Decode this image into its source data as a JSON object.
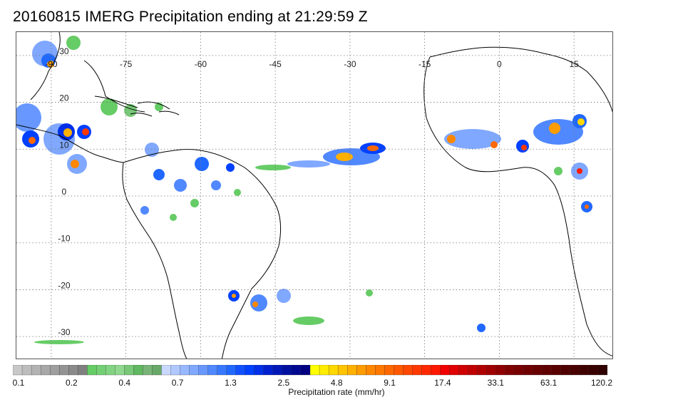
{
  "map": {
    "title": "20160815 IMERG Precipitation ending at 21:29:59 Z",
    "longitude_labels": [
      "-90",
      "-75",
      "-60",
      "-45",
      "-30",
      "-15",
      "0",
      "15"
    ],
    "latitude_labels": [
      "30",
      "20",
      "10",
      "0",
      "-10",
      "-20",
      "-30"
    ],
    "gridlines": true,
    "land_color": "#ffffff",
    "coastline_color": "#000000"
  },
  "colorbar": {
    "title": "Precipitation rate (mm/hr)",
    "tick_labels": [
      "0.1",
      "0.2",
      "0.4",
      "0.7",
      "1.3",
      "2.5",
      "4.8",
      "9.1",
      "17.4",
      "33.1",
      "63.1",
      "120.2"
    ],
    "colors": [
      "#c8c8c8",
      "#bdbdbd",
      "#b3b3b3",
      "#a8a8a8",
      "#9e9e9e",
      "#949494",
      "#8a8a8a",
      "#808080",
      "#66cc66",
      "#74d074",
      "#82d482",
      "#90d890",
      "#78c878",
      "#60b860",
      "#78b478",
      "#68a868",
      "#c8d8ff",
      "#b0c8ff",
      "#98b8ff",
      "#80a8ff",
      "#6898ff",
      "#5088ff",
      "#3878ff",
      "#2068ff",
      "#1050ff",
      "#0040ff",
      "#0030e8",
      "#0020d0",
      "#0018b8",
      "#0010a0",
      "#000890",
      "#000080",
      "#ffff00",
      "#ffec00",
      "#ffd800",
      "#ffc400",
      "#ffb000",
      "#ff9c00",
      "#ff8800",
      "#ff7800",
      "#ff6800",
      "#ff5800",
      "#ff4800",
      "#ff3800",
      "#ff2800",
      "#ff1800",
      "#f00000",
      "#e00000",
      "#d00000",
      "#c00000",
      "#b00000",
      "#a00000",
      "#900000",
      "#800000",
      "#780000",
      "#700000",
      "#680000",
      "#600000",
      "#580000",
      "#500000",
      "#480000",
      "#400000",
      "#380000",
      "#300000"
    ]
  }
}
